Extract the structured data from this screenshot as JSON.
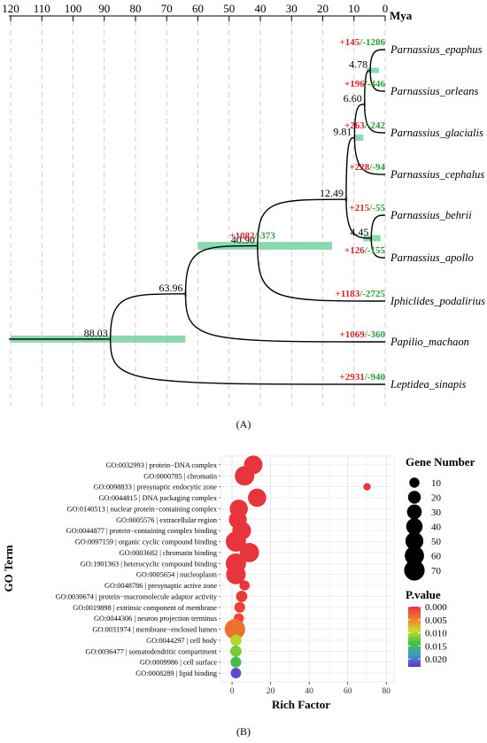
{
  "panel_a_label": "(A)",
  "panel_b_label": "(B)",
  "chart_data": [
    {
      "type": "tree",
      "axis_label": "Mya",
      "axis_ticks": [
        120,
        110,
        100,
        90,
        80,
        70,
        60,
        50,
        40,
        30,
        20,
        10,
        0
      ],
      "axis_range": [
        120,
        0
      ],
      "grid": true,
      "tips": [
        {
          "name": "Parnassius_epaphus",
          "gain": "+145",
          "loss": "-1286"
        },
        {
          "name": "Parnassius_orleans",
          "gain": "+196",
          "loss": "-446"
        },
        {
          "name": "Parnassius_glacialis",
          "gain": "+263",
          "loss": "-242"
        },
        {
          "name": "Parnassius_cephalus",
          "gain": "+228",
          "loss": "-94"
        },
        {
          "name": "Parnassius_behrii",
          "gain": "+215",
          "loss": "-55"
        },
        {
          "name": "Parnassius_apollo",
          "gain": "+126",
          "loss": "-155"
        },
        {
          "name": "Iphiclides_podalirius",
          "gain": "+1183",
          "loss": "-2725"
        },
        {
          "name": "Papilio_machaon",
          "gain": "+1069",
          "loss": "-360"
        },
        {
          "name": "Leptidea_sinapis",
          "gain": "+2931",
          "loss": "-940"
        }
      ],
      "nodes": [
        {
          "age": 88.03,
          "label": "88.03",
          "ci": [
            120,
            64
          ]
        },
        {
          "age": 63.96,
          "label": "63.96",
          "ci": [
            64.5,
            63.5
          ]
        },
        {
          "age": 40.9,
          "label": "40.90",
          "ci": [
            60,
            17
          ],
          "gain": "+1082",
          "loss": "-373"
        },
        {
          "age": 12.49,
          "label": "12.49",
          "ci": [
            13,
            12
          ]
        },
        {
          "age": 9.81,
          "label": "9.81",
          "ci": [
            10,
            7
          ]
        },
        {
          "age": 6.6,
          "label": "6.60",
          "ci": [
            6.8,
            6.4
          ]
        },
        {
          "age": 4.78,
          "label": "4.78",
          "ci": [
            6,
            2
          ]
        },
        {
          "age": 4.45,
          "label": "4.45",
          "ci": [
            7,
            1.5
          ]
        }
      ]
    },
    {
      "type": "scatter",
      "ylabel": "GO Term",
      "xlabel": "Rich Factor",
      "xticks": [
        0,
        20,
        40,
        60,
        80
      ],
      "xlim": [
        -6,
        84
      ],
      "grid": true,
      "size_legend": {
        "title": "Gene Number",
        "values": [
          10,
          20,
          30,
          40,
          50,
          60,
          70
        ]
      },
      "color_legend": {
        "title": "P.value",
        "ticks": [
          "0.000",
          "0.005",
          "0.010",
          "0.015",
          "0.020"
        ],
        "range": [
          0,
          0.023
        ],
        "colors": [
          "#e8323c",
          "#ef7a2c",
          "#cddb2c",
          "#43c13f",
          "#3a9ec2",
          "#6a2fd4"
        ]
      },
      "terms": [
        {
          "label": "GO:0032993 | protein−DNA complex",
          "x": 11,
          "genes": 55,
          "p": 0.0001
        },
        {
          "label": "GO:0000785 | chromatin",
          "x": 6.5,
          "genes": 62,
          "p": 0.0001
        },
        {
          "label": "GO:0098833 | presynaptic endocytic zone",
          "x": 70,
          "genes": 3,
          "p": 0.0002
        },
        {
          "label": "GO:0044815 | DNA packaging complex",
          "x": 13,
          "genes": 53,
          "p": 0.0001
        },
        {
          "label": "GO:0140513 | nuclear protein−containing complex",
          "x": 3.5,
          "genes": 52,
          "p": 0.0001
        },
        {
          "label": "GO:0005576 | extracellular region",
          "x": 3,
          "genes": 50,
          "p": 0.0001
        },
        {
          "label": "GO:0044877 | protein−containing complex binding",
          "x": 5,
          "genes": 55,
          "p": 0.0001
        },
        {
          "label": "GO:0097159 | organic cyclic compound binding",
          "x": 2,
          "genes": 68,
          "p": 0.0001
        },
        {
          "label": "GO:0003682 | chromatin binding",
          "x": 9,
          "genes": 60,
          "p": 0.0001
        },
        {
          "label": "GO:1901363 | heterocyclic compound binding",
          "x": 2,
          "genes": 68,
          "p": 0.0001
        },
        {
          "label": "GO:0005654 | nucleoplasm",
          "x": 2,
          "genes": 62,
          "p": 0.0001
        },
        {
          "label": "GO:0048786 | presynaptic active zone",
          "x": 6.5,
          "genes": 10,
          "p": 0.0003
        },
        {
          "label": "GO:0030674 | protein−macromolecule adaptor activity",
          "x": 5,
          "genes": 14,
          "p": 0.0005
        },
        {
          "label": "GO:0019898 | extrinsic component of membrane",
          "x": 4,
          "genes": 12,
          "p": 0.001
        },
        {
          "label": "GO:0044306 | neuron projection terminus",
          "x": 3.5,
          "genes": 10,
          "p": 0.0015
        },
        {
          "label": "GO:0031974 | membrane−enclosed lumen",
          "x": 1.5,
          "genes": 70,
          "p": 0.004
        },
        {
          "label": "GO:0044297 | cell body",
          "x": 2,
          "genes": 14,
          "p": 0.01
        },
        {
          "label": "GO:0036477 | somatodendritic compartment",
          "x": 2,
          "genes": 14,
          "p": 0.012
        },
        {
          "label": "GO:0009986 | cell surface",
          "x": 2,
          "genes": 12,
          "p": 0.014
        },
        {
          "label": "GO:0008289 | lipid binding",
          "x": 2,
          "genes": 11,
          "p": 0.022
        }
      ]
    }
  ]
}
